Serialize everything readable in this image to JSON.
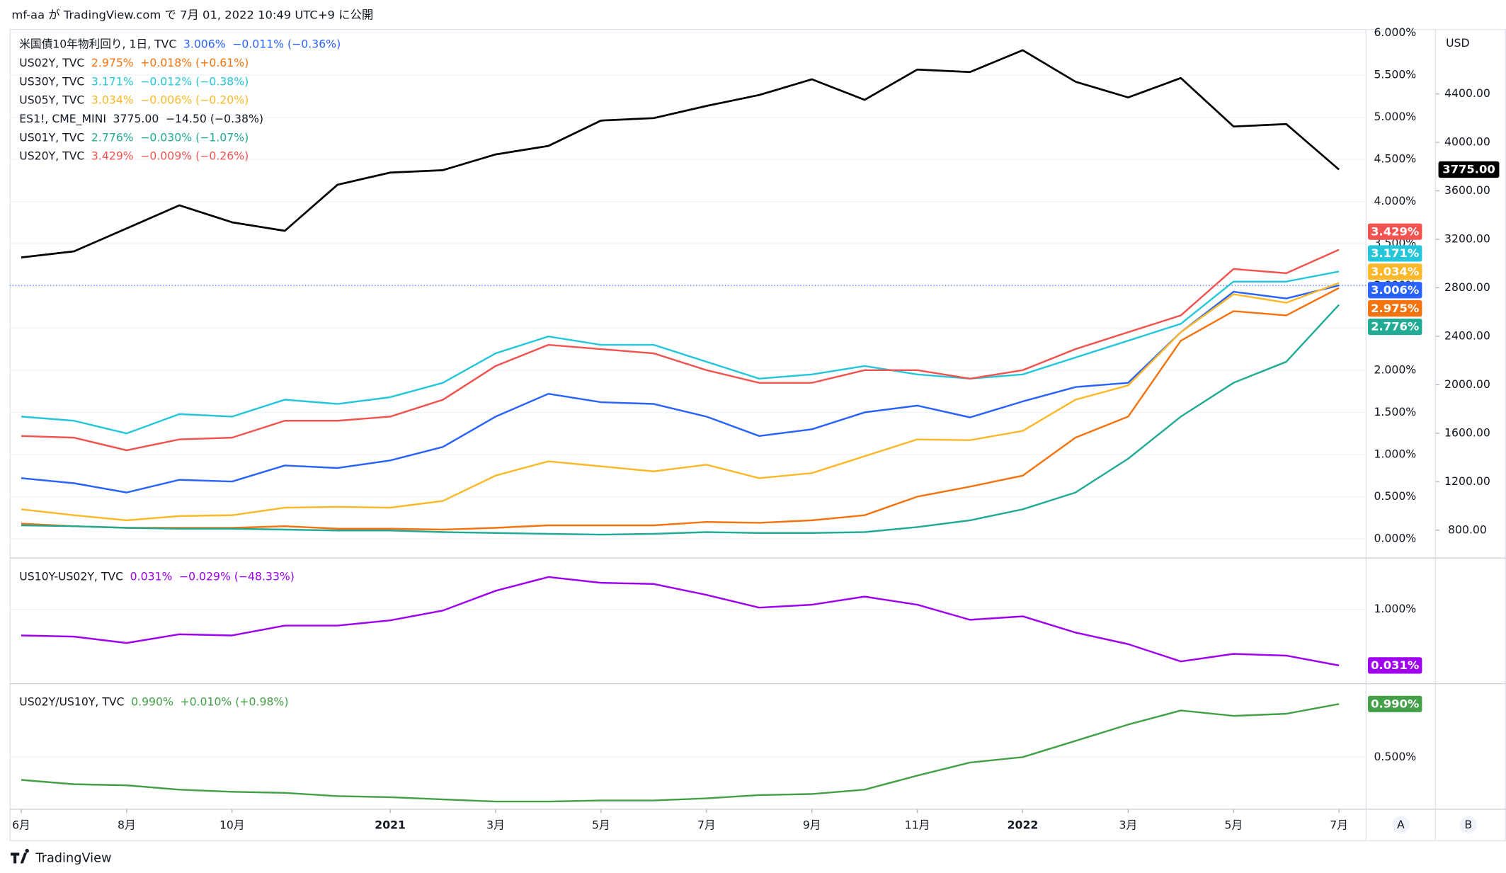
{
  "header": "mf-aa が TradingView.com で 7月 01, 2022 10:49 UTC+9 に公開",
  "footer": "TradingView",
  "scale_buttons": [
    "A",
    "B"
  ],
  "chart_data": [
    {
      "type": "line",
      "grid": true,
      "ylim": [
        -0.229,
        6.046
      ],
      "yticks": [
        {
          "value": 0,
          "label": "0.000%"
        },
        {
          "value": 0.5,
          "label": "0.500%"
        },
        {
          "value": 1,
          "label": "1.000%"
        },
        {
          "value": 1.5,
          "label": "1.500%"
        },
        {
          "value": 2,
          "label": "2.000%"
        },
        {
          "value": 2.5,
          "label": "2.500%"
        },
        {
          "value": 3,
          "label": "3.000%"
        },
        {
          "value": 3.5,
          "label": "3.500%"
        },
        {
          "value": 4,
          "label": "4.000%"
        },
        {
          "value": 4.5,
          "label": "4.500%"
        },
        {
          "value": 5,
          "label": "5.000%"
        },
        {
          "value": 5.5,
          "label": "5.500%"
        },
        {
          "value": 6,
          "label": "6.000%"
        }
      ],
      "y2label": "USD",
      "y2lim": [
        569,
        4935
      ],
      "y2ticks": [
        {
          "value": 800,
          "label": "800.00"
        },
        {
          "value": 1200,
          "label": "1200.00"
        },
        {
          "value": 1600,
          "label": "1600.00"
        },
        {
          "value": 2000,
          "label": "2000.00"
        },
        {
          "value": 2400,
          "label": "2400.00"
        },
        {
          "value": 2800,
          "label": "2800.00"
        },
        {
          "value": 3200,
          "label": "3200.00"
        },
        {
          "value": 3600,
          "label": "3600.00"
        },
        {
          "value": 4000,
          "label": "4000.00"
        },
        {
          "value": 4400,
          "label": "4400.00"
        }
      ],
      "series": [
        {
          "name": "米国債10年物利回り, 1日, TVC",
          "color": "#2962ff",
          "last_label": "3.006%",
          "change": "−0.011% (−0.36%)",
          "values": [
            0.72,
            0.66,
            0.55,
            0.7,
            0.68,
            0.87,
            0.84,
            0.93,
            1.09,
            1.45,
            1.72,
            1.62,
            1.6,
            1.45,
            1.22,
            1.3,
            1.5,
            1.58,
            1.44,
            1.63,
            1.8,
            1.85,
            2.45,
            2.93,
            2.85,
            3.006
          ]
        },
        {
          "name": "US02Y, TVC",
          "color": "#f4730e",
          "last_label": "2.975%",
          "change": "+0.018% (+0.61%)",
          "values": [
            0.18,
            0.15,
            0.13,
            0.13,
            0.13,
            0.15,
            0.12,
            0.12,
            0.11,
            0.13,
            0.16,
            0.16,
            0.16,
            0.2,
            0.19,
            0.22,
            0.28,
            0.5,
            0.62,
            0.75,
            1.2,
            1.45,
            2.35,
            2.7,
            2.65,
            2.975
          ]
        },
        {
          "name": "US30Y, TVC",
          "color": "#26c6da",
          "last_label": "3.171%",
          "change": "−0.012% (−0.38%)",
          "values": [
            1.45,
            1.4,
            1.25,
            1.48,
            1.45,
            1.65,
            1.6,
            1.68,
            1.85,
            2.2,
            2.4,
            2.3,
            2.3,
            2.1,
            1.9,
            1.95,
            2.05,
            1.95,
            1.9,
            1.95,
            2.15,
            2.35,
            2.55,
            3.05,
            3.05,
            3.171
          ]
        },
        {
          "name": "US05Y, TVC",
          "color": "#fbb829",
          "last_label": "3.034%",
          "change": "−0.006% (−0.20%)",
          "values": [
            0.35,
            0.28,
            0.22,
            0.27,
            0.28,
            0.37,
            0.38,
            0.37,
            0.45,
            0.75,
            0.92,
            0.86,
            0.8,
            0.88,
            0.72,
            0.78,
            0.98,
            1.18,
            1.17,
            1.28,
            1.65,
            1.82,
            2.45,
            2.9,
            2.8,
            3.034
          ]
        },
        {
          "name": "ES1!, CME_MINI",
          "color": "#000000",
          "axis": "y2",
          "last_label": "3775.00",
          "change": "−14.50 (−0.38%)",
          "values": [
            3050,
            3100,
            3290,
            3480,
            3340,
            3270,
            3650,
            3750,
            3770,
            3900,
            3970,
            4180,
            4200,
            4300,
            4390,
            4520,
            4350,
            4600,
            4580,
            4760,
            4500,
            4370,
            4530,
            4130,
            4150,
            3775
          ]
        },
        {
          "name": "US01Y, TVC",
          "color": "#22ab94",
          "last_label": "2.776%",
          "change": "−0.030% (−1.07%)",
          "values": [
            0.16,
            0.15,
            0.13,
            0.12,
            0.12,
            0.11,
            0.1,
            0.1,
            0.08,
            0.07,
            0.06,
            0.05,
            0.06,
            0.08,
            0.07,
            0.07,
            0.08,
            0.14,
            0.22,
            0.35,
            0.55,
            0.95,
            1.45,
            1.85,
            2.1,
            2.776
          ]
        },
        {
          "name": "US20Y, TVC",
          "color": "#f05350",
          "last_label": "3.429%",
          "change": "−0.009% (−0.26%)",
          "values": [
            1.22,
            1.2,
            1.05,
            1.18,
            1.2,
            1.4,
            1.4,
            1.45,
            1.65,
            2.05,
            2.3,
            2.25,
            2.2,
            2.0,
            1.85,
            1.85,
            2.0,
            2.0,
            1.9,
            2.0,
            2.25,
            2.45,
            2.65,
            3.2,
            3.15,
            3.429
          ]
        }
      ]
    },
    {
      "type": "line",
      "grid": true,
      "ylim": [
        -0.285,
        1.885
      ],
      "yticks": [
        {
          "value": 1,
          "label": "1.000%"
        }
      ],
      "series": [
        {
          "name": "US10Y-US02Y, TVC",
          "color": "#a000f0",
          "last_label": "0.031%",
          "change": "−0.029% (−48.33%)",
          "values": [
            0.55,
            0.53,
            0.42,
            0.57,
            0.55,
            0.72,
            0.72,
            0.81,
            0.98,
            1.32,
            1.56,
            1.46,
            1.44,
            1.25,
            1.03,
            1.08,
            1.22,
            1.08,
            0.82,
            0.88,
            0.6,
            0.4,
            0.1,
            0.23,
            0.2,
            0.031
          ]
        }
      ]
    },
    {
      "type": "line",
      "grid": true,
      "ylim": [
        0.019,
        1.177
      ],
      "yticks": [
        {
          "value": 0.5,
          "label": "0.500%"
        }
      ],
      "categories": [
        "6月",
        null,
        "8月",
        null,
        "10月",
        null,
        null,
        "2021",
        null,
        "3月",
        null,
        "5月",
        null,
        "7月",
        null,
        "9月",
        null,
        "11月",
        null,
        "2022",
        null,
        "3月",
        null,
        "5月",
        null,
        "7月"
      ],
      "series": [
        {
          "name": "US02Y/US10Y, TVC",
          "color": "#43a047",
          "last_label": "0.990%",
          "change": "+0.010% (+0.98%)",
          "values": [
            0.29,
            0.25,
            0.24,
            0.2,
            0.18,
            0.17,
            0.14,
            0.13,
            0.11,
            0.09,
            0.09,
            0.1,
            0.1,
            0.12,
            0.15,
            0.16,
            0.2,
            0.33,
            0.45,
            0.5,
            0.65,
            0.8,
            0.93,
            0.88,
            0.9,
            0.99
          ]
        }
      ]
    }
  ]
}
